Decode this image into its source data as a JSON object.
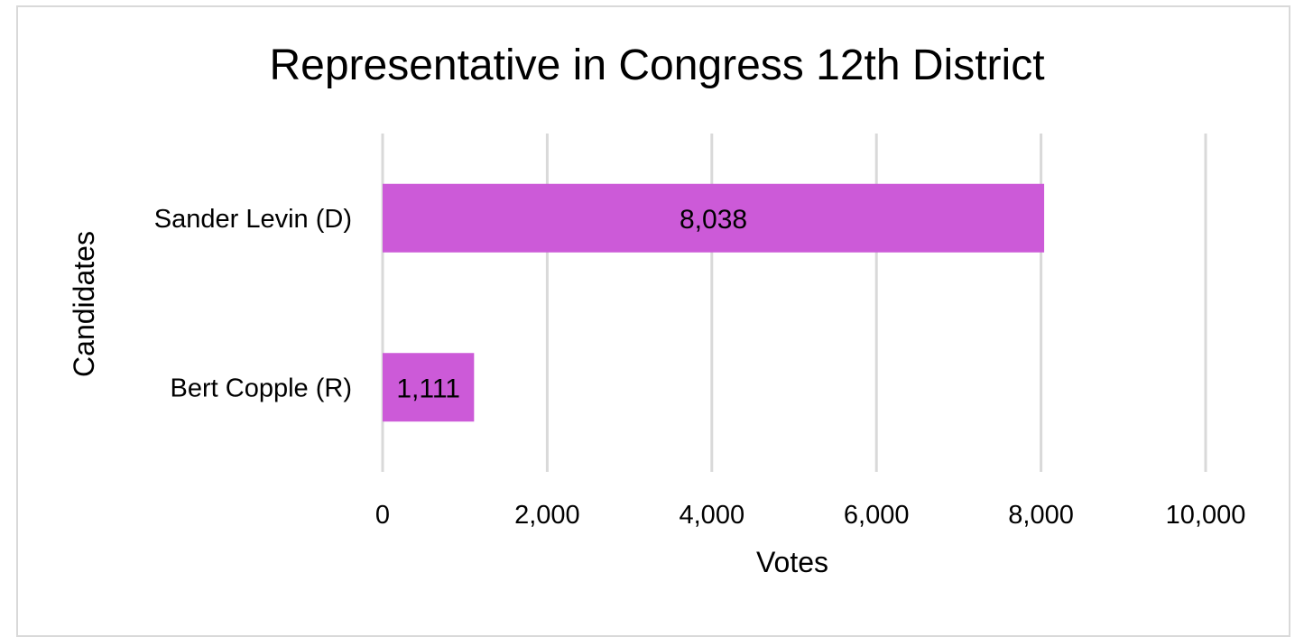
{
  "chart_data": {
    "type": "bar",
    "orientation": "horizontal",
    "title": "Representative in Congress 12th District",
    "xlabel": "Votes",
    "ylabel": "Candidates",
    "categories": [
      "Sander Levin (D)",
      "Bert Copple (R)"
    ],
    "values": [
      8038,
      1111
    ],
    "data_labels": [
      "8,038",
      "1,111"
    ],
    "xlim": [
      0,
      10000
    ],
    "xticks": [
      0,
      2000,
      4000,
      6000,
      8000,
      10000
    ],
    "xtick_labels": [
      "0",
      "2,000",
      "4,000",
      "6,000",
      "8,000",
      "10,000"
    ],
    "grid": "vertical",
    "legend": "none",
    "colors": {
      "bar": "#cc5ad8",
      "grid": "#d9d9d9",
      "border": "#d9d9d9",
      "text": "#000000"
    }
  }
}
